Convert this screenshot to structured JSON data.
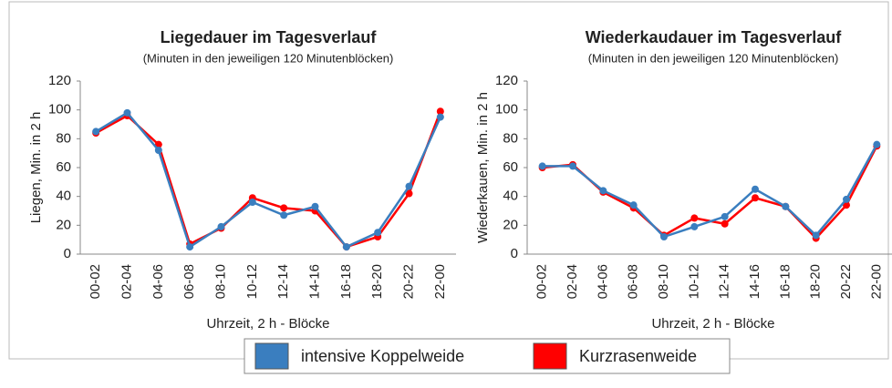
{
  "chart_data": [
    {
      "type": "line",
      "title": "Liegedauer im Tagesverlauf",
      "subtitle": "(Minuten in den jeweiligen 120 Minutenblöcken)",
      "y_label": "Liegen, Min. in 2 h",
      "x_label": "Uhrzeit, 2 h - Blöcke",
      "categories": [
        "00-02",
        "02-04",
        "04-06",
        "06-08",
        "08-10",
        "10-12",
        "12-14",
        "14-16",
        "16-18",
        "18-20",
        "20-22",
        "22-00"
      ],
      "series": [
        {
          "name": "intensive Koppelweide",
          "color": "#3a7ebf",
          "values": [
            85,
            98,
            72,
            5,
            19,
            36,
            27,
            33,
            5,
            15,
            47,
            95
          ]
        },
        {
          "name": "Kurzrasenweide",
          "color": "#ff0000",
          "values": [
            84,
            96,
            76,
            7,
            18,
            39,
            32,
            30,
            5,
            12,
            42,
            99
          ]
        }
      ],
      "ylim": [
        0,
        120
      ],
      "yticks": [
        0,
        20,
        40,
        60,
        80,
        100,
        120
      ],
      "grid": false
    },
    {
      "type": "line",
      "title": "Wiederkaudauer im Tagesverlauf",
      "subtitle": "(Minuten in den jeweiligen 120 Minutenblöcken)",
      "y_label": "Wiederkauen, Min. in 2 h",
      "x_label": "Uhrzeit, 2 h - Blöcke",
      "categories": [
        "00-02",
        "02-04",
        "04-06",
        "06-08",
        "08-10",
        "10-12",
        "12-14",
        "14-16",
        "16-18",
        "18-20",
        "20-22",
        "22-00"
      ],
      "series": [
        {
          "color": "#3a7ebf",
          "values": [
            61,
            61,
            44,
            34,
            12,
            19,
            26,
            45,
            33,
            13,
            38,
            76
          ]
        },
        {
          "color": "#ff0000",
          "values": [
            60,
            62,
            43,
            32,
            13,
            25,
            21,
            39,
            33,
            11,
            34,
            75
          ]
        }
      ],
      "ylim": [
        0,
        120
      ],
      "yticks": [
        0,
        20,
        40,
        60,
        80,
        100,
        120
      ],
      "grid": false
    }
  ]
}
